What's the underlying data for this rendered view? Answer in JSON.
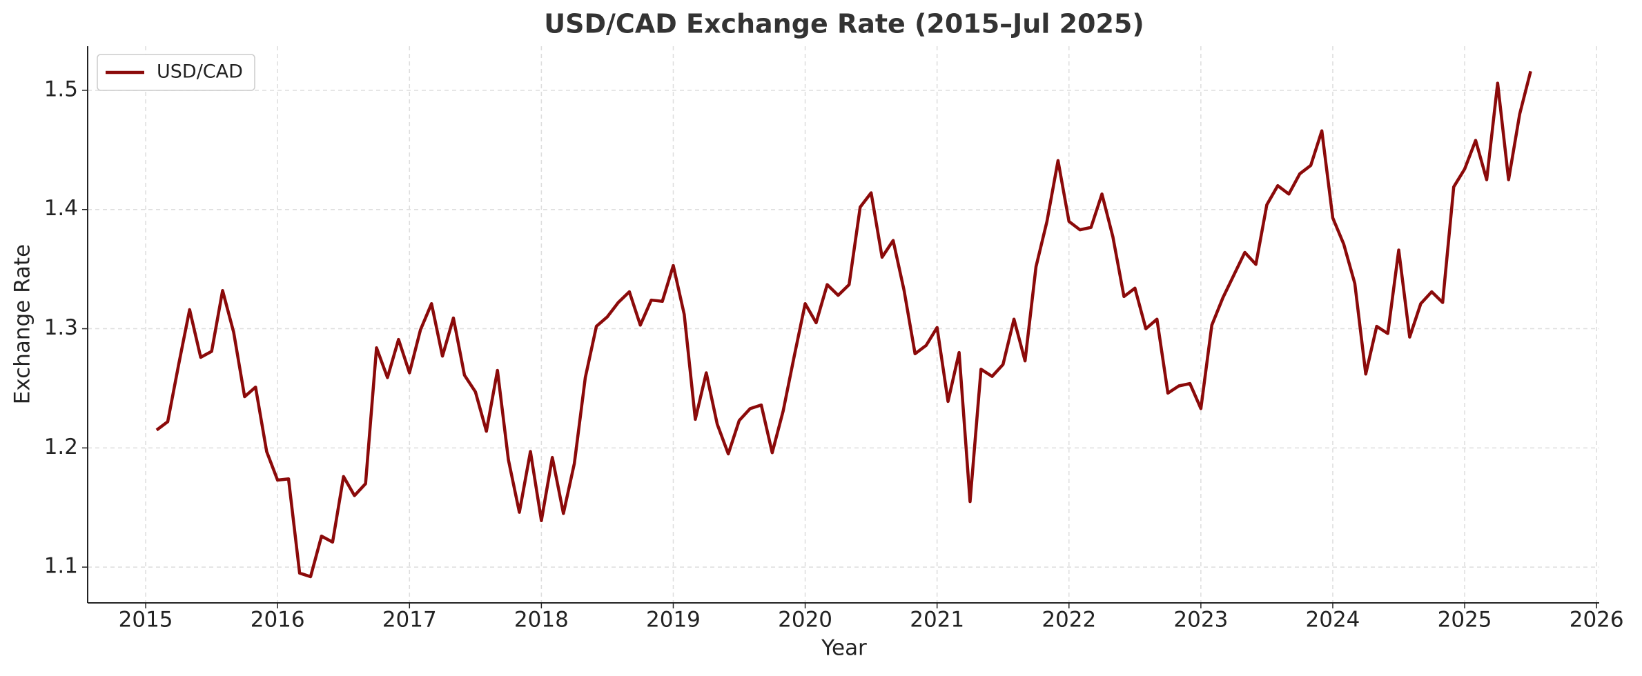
{
  "chart_data": {
    "type": "line",
    "title": "USD/CAD Exchange Rate (2015–Jul 2025)",
    "x_label": "Year",
    "y_label": "Exchange Rate",
    "x": [
      2015.083,
      2015.167,
      2015.25,
      2015.333,
      2015.417,
      2015.5,
      2015.583,
      2015.667,
      2015.75,
      2015.833,
      2015.917,
      2016.0,
      2016.083,
      2016.167,
      2016.25,
      2016.333,
      2016.417,
      2016.5,
      2016.583,
      2016.667,
      2016.75,
      2016.833,
      2016.917,
      2017.0,
      2017.083,
      2017.167,
      2017.25,
      2017.333,
      2017.417,
      2017.5,
      2017.583,
      2017.667,
      2017.75,
      2017.833,
      2017.917,
      2018.0,
      2018.083,
      2018.167,
      2018.25,
      2018.333,
      2018.417,
      2018.5,
      2018.583,
      2018.667,
      2018.75,
      2018.833,
      2018.917,
      2019.0,
      2019.083,
      2019.167,
      2019.25,
      2019.333,
      2019.417,
      2019.5,
      2019.583,
      2019.667,
      2019.75,
      2019.833,
      2019.917,
      2020.0,
      2020.083,
      2020.167,
      2020.25,
      2020.333,
      2020.417,
      2020.5,
      2020.583,
      2020.667,
      2020.75,
      2020.833,
      2020.917,
      2021.0,
      2021.083,
      2021.167,
      2021.25,
      2021.333,
      2021.417,
      2021.5,
      2021.583,
      2021.667,
      2021.75,
      2021.833,
      2021.917,
      2022.0,
      2022.083,
      2022.167,
      2022.25,
      2022.333,
      2022.417,
      2022.5,
      2022.583,
      2022.667,
      2022.75,
      2022.833,
      2022.917,
      2023.0,
      2023.083,
      2023.167,
      2023.25,
      2023.333,
      2023.417,
      2023.5,
      2023.583,
      2023.667,
      2023.75,
      2023.833,
      2023.917,
      2024.0,
      2024.083,
      2024.167,
      2024.25,
      2024.333,
      2024.417,
      2024.5,
      2024.583,
      2024.667,
      2024.75,
      2024.833,
      2024.917,
      2025.0,
      2025.083,
      2025.167,
      2025.25,
      2025.333,
      2025.417,
      2025.5
    ],
    "series": [
      {
        "name": "USD/CAD",
        "color": "#8b0a0a",
        "values": [
          1.215,
          1.222,
          1.27,
          1.316,
          1.276,
          1.281,
          1.332,
          1.297,
          1.243,
          1.251,
          1.197,
          1.173,
          1.174,
          1.095,
          1.092,
          1.126,
          1.121,
          1.176,
          1.16,
          1.17,
          1.284,
          1.259,
          1.291,
          1.263,
          1.299,
          1.321,
          1.277,
          1.309,
          1.261,
          1.247,
          1.214,
          1.265,
          1.19,
          1.146,
          1.197,
          1.139,
          1.192,
          1.145,
          1.187,
          1.259,
          1.302,
          1.31,
          1.322,
          1.331,
          1.303,
          1.324,
          1.323,
          1.353,
          1.312,
          1.224,
          1.263,
          1.22,
          1.195,
          1.223,
          1.233,
          1.236,
          1.196,
          1.231,
          1.277,
          1.321,
          1.305,
          1.337,
          1.328,
          1.337,
          1.402,
          1.414,
          1.36,
          1.374,
          1.332,
          1.279,
          1.286,
          1.301,
          1.239,
          1.28,
          1.155,
          1.266,
          1.26,
          1.27,
          1.308,
          1.273,
          1.352,
          1.39,
          1.441,
          1.39,
          1.383,
          1.385,
          1.413,
          1.377,
          1.327,
          1.334,
          1.3,
          1.308,
          1.246,
          1.252,
          1.254,
          1.233,
          1.303,
          1.326,
          1.345,
          1.364,
          1.354,
          1.404,
          1.42,
          1.413,
          1.43,
          1.437,
          1.466,
          1.393,
          1.371,
          1.338,
          1.262,
          1.302,
          1.296,
          1.366,
          1.293,
          1.321,
          1.331,
          1.322,
          1.419,
          1.434,
          1.458,
          1.425,
          1.506,
          1.425,
          1.48,
          1.516
        ]
      }
    ],
    "xlim": [
      2014.56,
      2026.02
    ],
    "xticks": [
      2015,
      2016,
      2017,
      2018,
      2019,
      2020,
      2021,
      2022,
      2023,
      2024,
      2025,
      2026
    ],
    "ylim": [
      1.07,
      1.537
    ],
    "yticks": [
      1.1,
      1.2,
      1.3,
      1.4,
      1.5
    ],
    "grid": true,
    "legend": "upper left"
  }
}
